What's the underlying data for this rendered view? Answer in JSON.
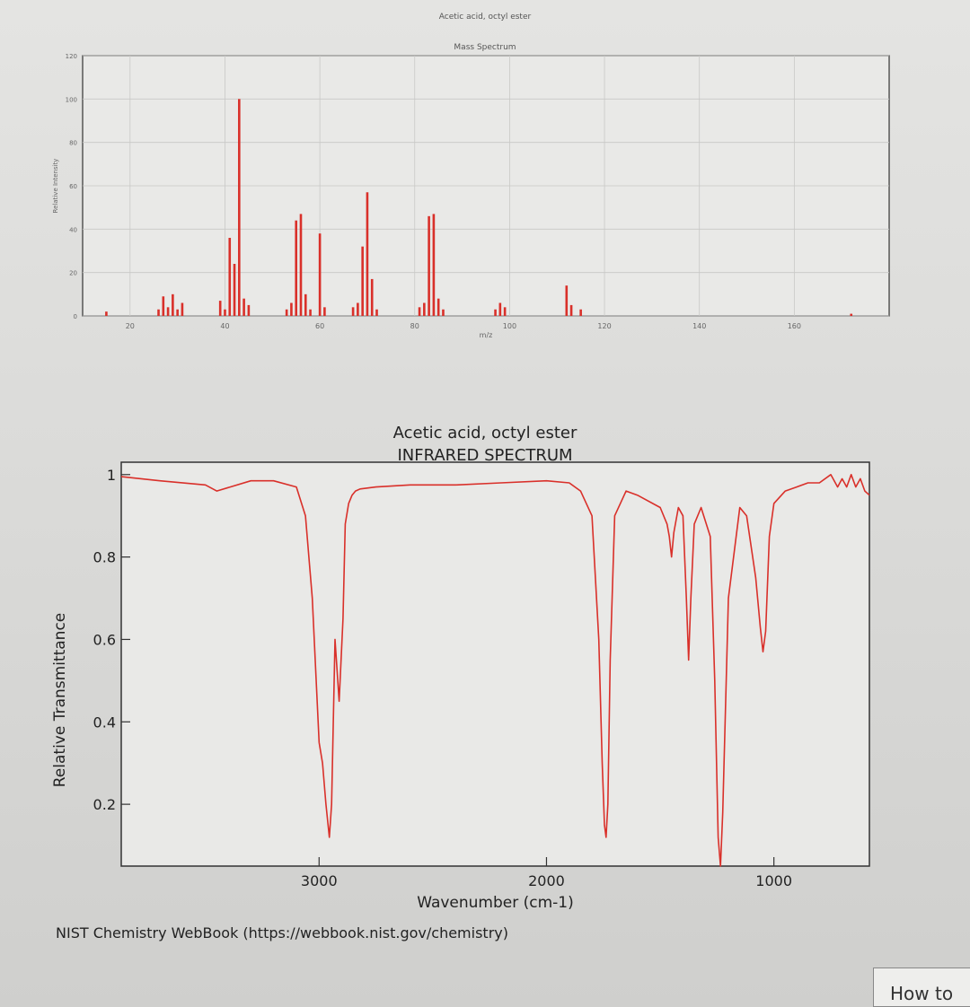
{
  "colors": {
    "background": "#dcdcda",
    "plot_bg": "#e9e9e7",
    "line": "#d9302a",
    "frame": "#333333",
    "text": "#222222"
  },
  "chart_data": [
    {
      "type": "bar",
      "title": "Acetic acid, octyl ester",
      "subtitle": "Mass Spectrum",
      "xlabel": "m/z",
      "ylabel": "Relative Intensity",
      "xlim": [
        10,
        180
      ],
      "ylim": [
        0,
        120
      ],
      "x_ticks": [
        20,
        40,
        60,
        80,
        100,
        120,
        140,
        160
      ],
      "y_ticks": [
        0,
        20,
        40,
        60,
        80,
        100,
        120
      ],
      "grid": true,
      "points": [
        {
          "x": 15,
          "y": 2
        },
        {
          "x": 26,
          "y": 3
        },
        {
          "x": 27,
          "y": 9
        },
        {
          "x": 28,
          "y": 4
        },
        {
          "x": 29,
          "y": 10
        },
        {
          "x": 30,
          "y": 3
        },
        {
          "x": 31,
          "y": 6
        },
        {
          "x": 39,
          "y": 7
        },
        {
          "x": 40,
          "y": 3
        },
        {
          "x": 41,
          "y": 36
        },
        {
          "x": 42,
          "y": 24
        },
        {
          "x": 43,
          "y": 100
        },
        {
          "x": 44,
          "y": 8
        },
        {
          "x": 45,
          "y": 5
        },
        {
          "x": 53,
          "y": 3
        },
        {
          "x": 54,
          "y": 6
        },
        {
          "x": 55,
          "y": 44
        },
        {
          "x": 56,
          "y": 47
        },
        {
          "x": 57,
          "y": 10
        },
        {
          "x": 58,
          "y": 3
        },
        {
          "x": 60,
          "y": 38
        },
        {
          "x": 61,
          "y": 4
        },
        {
          "x": 67,
          "y": 4
        },
        {
          "x": 68,
          "y": 6
        },
        {
          "x": 69,
          "y": 32
        },
        {
          "x": 70,
          "y": 57
        },
        {
          "x": 71,
          "y": 17
        },
        {
          "x": 72,
          "y": 3
        },
        {
          "x": 81,
          "y": 4
        },
        {
          "x": 82,
          "y": 6
        },
        {
          "x": 83,
          "y": 46
        },
        {
          "x": 84,
          "y": 47
        },
        {
          "x": 85,
          "y": 8
        },
        {
          "x": 86,
          "y": 3
        },
        {
          "x": 97,
          "y": 3
        },
        {
          "x": 98,
          "y": 6
        },
        {
          "x": 99,
          "y": 4
        },
        {
          "x": 112,
          "y": 14
        },
        {
          "x": 113,
          "y": 5
        },
        {
          "x": 115,
          "y": 3
        },
        {
          "x": 172,
          "y": 1
        }
      ]
    },
    {
      "type": "line",
      "title": "Acetic acid, octyl ester",
      "subtitle": "INFRARED SPECTRUM",
      "xlabel": "Wavenumber (cm-1)",
      "ylabel": "Relative Transmittance",
      "xlim": [
        3870,
        580
      ],
      "ylim": [
        0.05,
        1.03
      ],
      "x_ticks": [
        3000,
        2000,
        1000
      ],
      "y_ticks": [
        0.2,
        0.4,
        0.6,
        0.8,
        1
      ],
      "grid": true,
      "x": [
        3870,
        3700,
        3500,
        3450,
        3300,
        3200,
        3100,
        3060,
        3030,
        3000,
        2985,
        2970,
        2955,
        2945,
        2930,
        2912,
        2895,
        2885,
        2870,
        2855,
        2840,
        2820,
        2750,
        2600,
        2400,
        2200,
        2000,
        1900,
        1850,
        1800,
        1770,
        1755,
        1745,
        1738,
        1730,
        1720,
        1700,
        1650,
        1600,
        1500,
        1470,
        1460,
        1450,
        1440,
        1420,
        1400,
        1385,
        1375,
        1365,
        1350,
        1320,
        1280,
        1260,
        1245,
        1235,
        1225,
        1200,
        1150,
        1120,
        1080,
        1060,
        1048,
        1036,
        1020,
        1000,
        950,
        900,
        850,
        800,
        750,
        720,
        700,
        680,
        660,
        640,
        620,
        600,
        580
      ],
      "y": [
        0.995,
        0.985,
        0.975,
        0.96,
        0.985,
        0.985,
        0.97,
        0.9,
        0.7,
        0.35,
        0.3,
        0.2,
        0.12,
        0.2,
        0.6,
        0.45,
        0.65,
        0.88,
        0.93,
        0.95,
        0.96,
        0.965,
        0.97,
        0.975,
        0.975,
        0.98,
        0.985,
        0.98,
        0.96,
        0.9,
        0.6,
        0.3,
        0.15,
        0.12,
        0.2,
        0.55,
        0.9,
        0.96,
        0.95,
        0.92,
        0.88,
        0.85,
        0.8,
        0.86,
        0.92,
        0.9,
        0.7,
        0.55,
        0.7,
        0.88,
        0.92,
        0.85,
        0.5,
        0.12,
        0.05,
        0.18,
        0.7,
        0.92,
        0.9,
        0.75,
        0.63,
        0.57,
        0.62,
        0.85,
        0.93,
        0.96,
        0.97,
        0.98,
        0.98,
        1.0,
        0.97,
        0.99,
        0.97,
        1.0,
        0.97,
        0.99,
        0.96,
        0.95
      ]
    }
  ],
  "footer": {
    "credit": "NIST Chemistry WebBook (https://webbook.nist.gov/chemistry)"
  },
  "button": {
    "label": "How to"
  }
}
